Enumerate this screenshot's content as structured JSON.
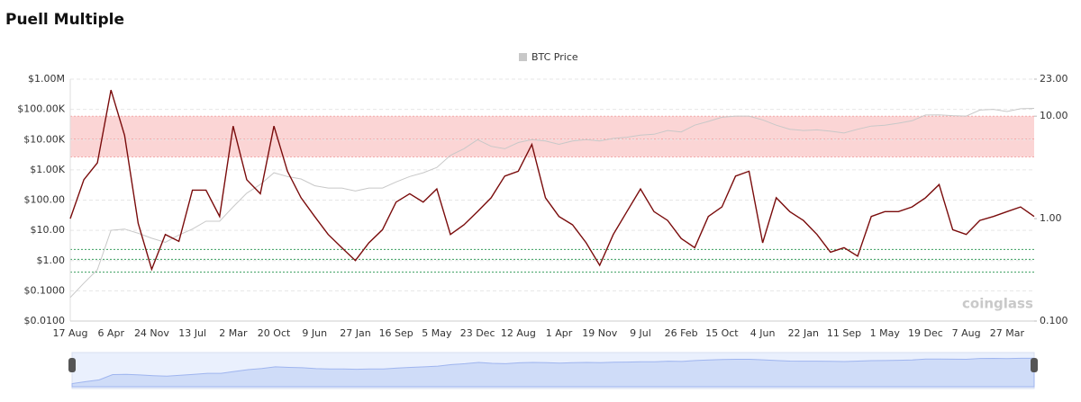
{
  "chart_data": {
    "type": "line",
    "title": "Puell Multiple",
    "watermark": "coinglass",
    "categories": [
      "17 Aug",
      null,
      null,
      "6 Apr",
      null,
      null,
      "24 Nov",
      null,
      null,
      "13 Jul",
      null,
      null,
      "2 Mar",
      null,
      null,
      "20 Oct",
      null,
      null,
      "9 Jun",
      null,
      null,
      "27 Jan",
      null,
      null,
      "16 Sep",
      null,
      null,
      "5 May",
      null,
      null,
      "23 Dec",
      null,
      null,
      "12 Aug",
      null,
      null,
      "1 Apr",
      null,
      null,
      "19 Nov",
      null,
      null,
      "9 Jul",
      null,
      null,
      "26 Feb",
      null,
      null,
      "15 Oct",
      null,
      null,
      "4 Jun",
      null,
      null,
      "22 Jan",
      null,
      null,
      "11 Sep",
      null,
      null,
      "1 May",
      null,
      null,
      "19 Dec",
      null,
      null,
      "7 Aug",
      null,
      null,
      "27 Mar",
      null,
      null
    ],
    "series": [
      {
        "name": "BTC Price",
        "color": "#c8c8c8",
        "axis": "y",
        "values": [
          0.06,
          0.18,
          0.5,
          10,
          11,
          8,
          5.5,
          4,
          7,
          11,
          20,
          20,
          60,
          170,
          330,
          800,
          600,
          500,
          300,
          250,
          250,
          200,
          250,
          250,
          400,
          600,
          800,
          1200,
          3000,
          5000,
          10000,
          6000,
          5000,
          8000,
          10000,
          9000,
          7000,
          9000,
          10000,
          9000,
          11000,
          12000,
          14000,
          15000,
          20000,
          18000,
          30000,
          40000,
          55000,
          60000,
          60000,
          45000,
          30000,
          22000,
          20000,
          21000,
          19000,
          16500,
          22000,
          28000,
          30000,
          35000,
          42000,
          65000,
          66000,
          62000,
          60000,
          95000,
          100000,
          85000,
          105000,
          108000
        ]
      },
      {
        "color": "#7a0c0c",
        "axis": "y2",
        "values": [
          1.0,
          2.4,
          3.5,
          18,
          6.5,
          0.9,
          0.32,
          0.7,
          0.6,
          1.9,
          1.9,
          1.05,
          8,
          2.4,
          1.75,
          8,
          2.9,
          1.6,
          1.05,
          0.7,
          0.52,
          0.39,
          0.58,
          0.78,
          1.45,
          1.75,
          1.45,
          1.95,
          0.7,
          0.87,
          1.17,
          1.6,
          2.6,
          2.9,
          5.3,
          1.6,
          1.05,
          0.87,
          0.58,
          0.35,
          0.7,
          1.17,
          1.95,
          1.17,
          0.96,
          0.64,
          0.52,
          1.05,
          1.3,
          2.6,
          2.9,
          0.58,
          1.6,
          1.17,
          0.96,
          0.7,
          0.47,
          0.52,
          0.43,
          1.05,
          1.17,
          1.17,
          1.3,
          1.6,
          2.15,
          0.78,
          0.7,
          0.96,
          1.05,
          1.17,
          1.3,
          1.05
        ]
      }
    ],
    "log_scale": true,
    "ylim": [
      0.01,
      1000000
    ],
    "yticks": [
      {
        "value": 0.01,
        "label": "$0.0100"
      },
      {
        "value": 0.1,
        "label": "$0.1000"
      },
      {
        "value": 1,
        "label": "$1.00"
      },
      {
        "value": 10,
        "label": "$10.00"
      },
      {
        "value": 100,
        "label": "$100.00"
      },
      {
        "value": 1000,
        "label": "$1.00K"
      },
      {
        "value": 10000,
        "label": "$10.00K"
      },
      {
        "value": 100000,
        "label": "$100.00K"
      },
      {
        "value": 1000000,
        "label": "$1.00M"
      }
    ],
    "y2lim": [
      0.1,
      23
    ],
    "y2ticks": [
      {
        "value": 0.1,
        "label": "0.100"
      },
      {
        "value": 1,
        "label": "1.00"
      },
      {
        "value": 10,
        "label": "10.00"
      },
      {
        "value": 23,
        "label": "23.00"
      }
    ],
    "bands": [
      {
        "range": [
          4,
          10
        ],
        "lines": [
          4,
          6,
          10
        ],
        "fill": "#fbd5d5",
        "line_color": "#f2aaaa"
      },
      {
        "range": [
          0.3,
          0.5
        ],
        "lines": [
          0.3,
          0.4,
          0.5
        ],
        "fill": "#ffffff",
        "line_color": "#3a9e5f"
      }
    ],
    "grid": true,
    "legend": "top"
  }
}
